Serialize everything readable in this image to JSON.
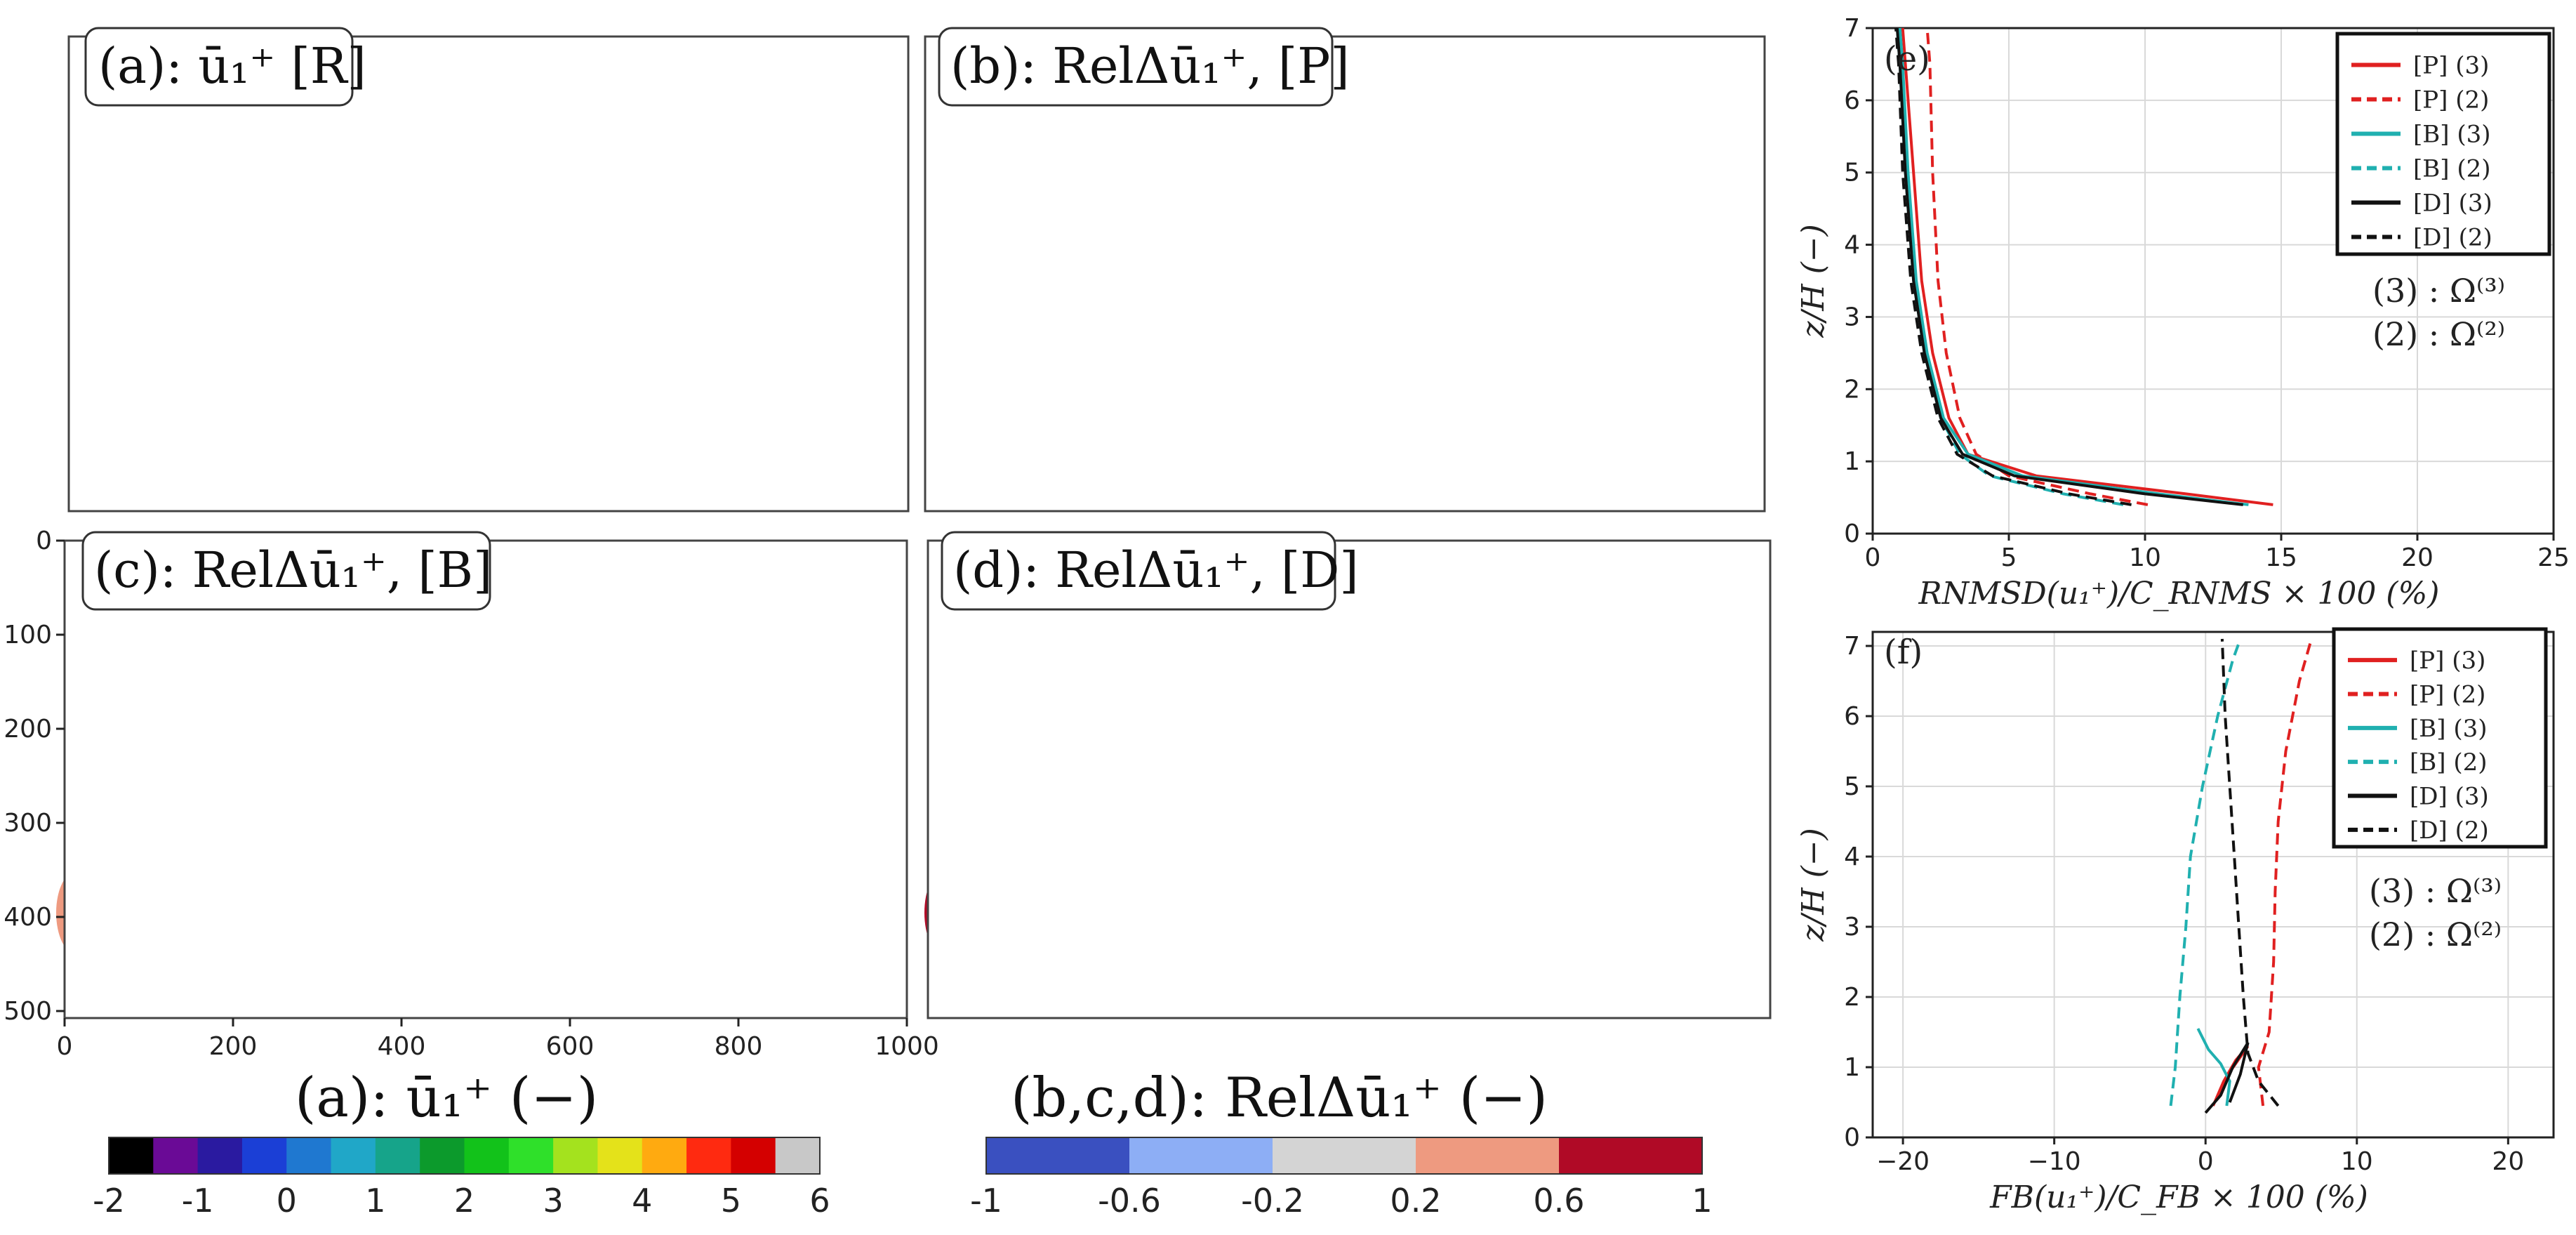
{
  "panels": {
    "a": {
      "label": "(a): ū₁⁺ [R]"
    },
    "b": {
      "label": "(b): RelΔū₁⁺, [P]"
    },
    "c": {
      "label": "(c): RelΔū₁⁺, [B]"
    },
    "d": {
      "label": "(d): RelΔū₁⁺, [D]"
    }
  },
  "map_axes": {
    "x_ticks": [
      "0",
      "200",
      "400",
      "600",
      "800",
      "1000"
    ],
    "y_ticks": [
      "0",
      "100",
      "200",
      "300",
      "400",
      "500"
    ]
  },
  "colorbar_a": {
    "title": "(a): ū₁⁺ (−)",
    "colors": [
      "#000000",
      "#6a0a96",
      "#2a1aa0",
      "#1b3fd6",
      "#1f78d0",
      "#20a7c8",
      "#16a48a",
      "#0c9a2c",
      "#12c21a",
      "#2fe02a",
      "#a4e21e",
      "#e4e21a",
      "#ffaa10",
      "#ff2a10",
      "#d40000",
      "#c8c8c8"
    ],
    "ticks": [
      "-2",
      "-1",
      "0",
      "1",
      "2",
      "3",
      "4",
      "5",
      "6"
    ]
  },
  "colorbar_bcd": {
    "title": "(b,c,d): RelΔū₁⁺ (−)",
    "colors": [
      "#3a50c0",
      "#8daef5",
      "#d4d4d4",
      "#ee9a80",
      "#b00a26"
    ],
    "ticks": [
      "-1",
      "-0.6",
      "-0.2",
      "0.2",
      "0.6",
      "1"
    ]
  },
  "chart_data": [
    {
      "type": "line",
      "panel": "(e)",
      "xlabel": "RNMSD(u₁⁺)/C_RNMS × 100   (%)",
      "ylabel": "z/H   (−)",
      "xlim": [
        0,
        25
      ],
      "ylim": [
        0,
        7
      ],
      "x_ticks": [
        "0",
        "5",
        "10",
        "15",
        "20",
        "25"
      ],
      "y_ticks": [
        "0",
        "1",
        "2",
        "3",
        "4",
        "5",
        "6",
        "7"
      ],
      "grid": true,
      "legend_position": "top-right",
      "annotations": [
        "(3) : Ω⁽³⁾",
        "(2) : Ω⁽²⁾"
      ],
      "series": [
        {
          "name": "[P]  (3)",
          "color": "#e02020",
          "dash": "solid",
          "points": [
            [
              14.7,
              0.4
            ],
            [
              11.5,
              0.55
            ],
            [
              6,
              0.8
            ],
            [
              3.5,
              1.1
            ],
            [
              2.8,
              1.6
            ],
            [
              2.2,
              2.5
            ],
            [
              1.8,
              3.5
            ],
            [
              1.5,
              5
            ],
            [
              1.2,
              6.5
            ],
            [
              1.1,
              7.0
            ]
          ]
        },
        {
          "name": "[P]  (2)",
          "color": "#e02020",
          "dash": "dashed",
          "points": [
            [
              10.1,
              0.4
            ],
            [
              8,
              0.55
            ],
            [
              5,
              0.8
            ],
            [
              3.8,
              1.1
            ],
            [
              3.2,
              1.6
            ],
            [
              2.7,
              2.5
            ],
            [
              2.4,
              3.5
            ],
            [
              2.2,
              5
            ],
            [
              2.1,
              6.5
            ],
            [
              2.0,
              7.0
            ]
          ]
        },
        {
          "name": "[B]  (3)",
          "color": "#20b0b0",
          "dash": "solid",
          "points": [
            [
              13.8,
              0.4
            ],
            [
              10.5,
              0.55
            ],
            [
              5.5,
              0.8
            ],
            [
              3.5,
              1.1
            ],
            [
              2.6,
              1.6
            ],
            [
              2.0,
              2.5
            ],
            [
              1.6,
              3.5
            ],
            [
              1.3,
              5
            ],
            [
              1.1,
              6.5
            ],
            [
              1.0,
              7.0
            ]
          ]
        },
        {
          "name": "[B]  (2)",
          "color": "#20b0b0",
          "dash": "dashed",
          "points": [
            [
              9.2,
              0.4
            ],
            [
              7,
              0.55
            ],
            [
              4.3,
              0.8
            ],
            [
              3.2,
              1.1
            ],
            [
              2.5,
              1.6
            ],
            [
              1.9,
              2.5
            ],
            [
              1.5,
              3.5
            ],
            [
              1.2,
              5
            ],
            [
              1.0,
              6.5
            ],
            [
              0.9,
              7.0
            ]
          ]
        },
        {
          "name": "[D]  (3)",
          "color": "#111111",
          "dash": "solid",
          "points": [
            [
              13.6,
              0.4
            ],
            [
              10,
              0.55
            ],
            [
              5.2,
              0.8
            ],
            [
              3.3,
              1.1
            ],
            [
              2.5,
              1.6
            ],
            [
              1.9,
              2.5
            ],
            [
              1.5,
              3.5
            ],
            [
              1.2,
              5
            ],
            [
              1.0,
              6.5
            ],
            [
              0.9,
              7.0
            ]
          ]
        },
        {
          "name": "[D]  (2)",
          "color": "#111111",
          "dash": "dashed",
          "points": [
            [
              9.5,
              0.4
            ],
            [
              7.2,
              0.55
            ],
            [
              4.4,
              0.8
            ],
            [
              3.1,
              1.1
            ],
            [
              2.4,
              1.6
            ],
            [
              1.8,
              2.5
            ],
            [
              1.4,
              3.5
            ],
            [
              1.1,
              5
            ],
            [
              0.95,
              6.5
            ],
            [
              0.85,
              7.0
            ]
          ]
        }
      ]
    },
    {
      "type": "line",
      "panel": "(f)",
      "xlabel": "FB(u₁⁺)/C_FB × 100   (%)",
      "ylabel": "z/H   (−)",
      "xlim": [
        -22,
        23
      ],
      "ylim": [
        0,
        7.2
      ],
      "x_ticks": [
        "−20",
        "−10",
        "0",
        "10",
        "20"
      ],
      "x_tick_values": [
        -20,
        -10,
        0,
        10,
        20
      ],
      "y_ticks": [
        "0",
        "1",
        "2",
        "3",
        "4",
        "5",
        "6",
        "7"
      ],
      "grid": true,
      "legend_position": "top-right",
      "annotations": [
        "(3) : Ω⁽³⁾",
        "(2) : Ω⁽²⁾"
      ],
      "series": [
        {
          "name": "[P]  (3)",
          "color": "#e02020",
          "dash": "solid",
          "points": [
            [
              0.5,
              0.45
            ],
            [
              1.2,
              0.8
            ],
            [
              2.0,
              1.1
            ],
            [
              2.8,
              1.3
            ],
            [
              1.5,
              0.9
            ],
            [
              0.8,
              0.6
            ]
          ]
        },
        {
          "name": "[P]  (2)",
          "color": "#e02020",
          "dash": "dashed",
          "points": [
            [
              3.8,
              0.45
            ],
            [
              3.5,
              1.0
            ],
            [
              4.2,
              1.5
            ],
            [
              4.5,
              2.5
            ],
            [
              4.6,
              3.5
            ],
            [
              4.8,
              4.5
            ],
            [
              5.3,
              5.5
            ],
            [
              6.2,
              6.5
            ],
            [
              7.0,
              7.1
            ]
          ]
        },
        {
          "name": "[B]  (3)",
          "color": "#20b0b0",
          "dash": "solid",
          "points": [
            [
              -0.5,
              1.55
            ],
            [
              0.2,
              1.25
            ],
            [
              1.0,
              1.05
            ],
            [
              1.6,
              0.8
            ],
            [
              1.4,
              0.45
            ]
          ]
        },
        {
          "name": "[B]  (2)",
          "color": "#20b0b0",
          "dash": "dashed",
          "points": [
            [
              -2.3,
              0.45
            ],
            [
              -2.0,
              1.0
            ],
            [
              -1.7,
              2.0
            ],
            [
              -1.3,
              3.0
            ],
            [
              -1.0,
              4.0
            ],
            [
              -0.2,
              5.0
            ],
            [
              0.8,
              6.0
            ],
            [
              1.8,
              6.8
            ],
            [
              2.3,
              7.1
            ]
          ]
        },
        {
          "name": "[D]  (3)",
          "color": "#111111",
          "dash": "solid",
          "points": [
            [
              0.0,
              0.35
            ],
            [
              1.0,
              0.6
            ],
            [
              1.8,
              1.0
            ],
            [
              2.8,
              1.35
            ],
            [
              2.3,
              0.9
            ],
            [
              1.6,
              0.5
            ]
          ]
        },
        {
          "name": "[D]  (2)",
          "color": "#111111",
          "dash": "dashed",
          "points": [
            [
              4.8,
              0.45
            ],
            [
              3.5,
              0.8
            ],
            [
              2.8,
              1.2
            ],
            [
              2.5,
              2.0
            ],
            [
              2.2,
              3.0
            ],
            [
              1.9,
              4.0
            ],
            [
              1.6,
              5.0
            ],
            [
              1.3,
              6.0
            ],
            [
              1.1,
              7.1
            ]
          ]
        }
      ]
    }
  ]
}
